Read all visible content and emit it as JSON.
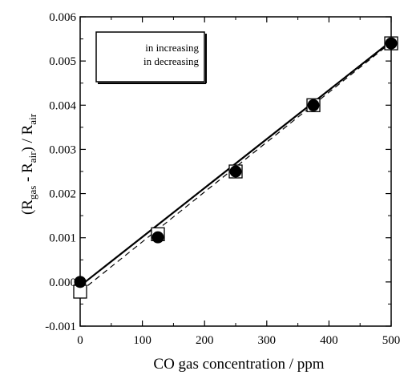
{
  "chart_data": {
    "type": "scatter",
    "xlabel": "CO gas concentration / ppm",
    "ylabel": {
      "open": "(R",
      "sub1": "gas",
      "mid": " - R",
      "sub2": "air",
      "close": ") / R",
      "sub3": "air"
    },
    "xlim": [
      0,
      500
    ],
    "ylim": [
      -0.001,
      0.006
    ],
    "x_ticks": [
      0,
      100,
      200,
      300,
      400,
      500
    ],
    "x_tick_labels": [
      "0",
      "100",
      "200",
      "300",
      "400",
      "500"
    ],
    "y_ticks": [
      -0.001,
      0,
      0.001,
      0.002,
      0.003,
      0.004,
      0.005,
      0.006
    ],
    "y_tick_labels": [
      "-0.001",
      "0.000",
      "0.001",
      "0.002",
      "0.003",
      "0.004",
      "0.005",
      "0.006"
    ],
    "grid": false,
    "legend_position": "top-left",
    "series": [
      {
        "name": "in increasing",
        "marker": "filled-circle",
        "line": "solid",
        "color": "#000000",
        "x": [
          0,
          125,
          250,
          375,
          500
        ],
        "y": [
          0.0,
          0.00101,
          0.0025,
          0.004,
          0.0054
        ],
        "fit": [
          [
            0,
            -9e-05
          ],
          [
            500,
            0.00545
          ]
        ]
      },
      {
        "name": "in decreasing",
        "marker": "open-square",
        "line": "dashed",
        "color": "#000000",
        "x": [
          0,
          125,
          250,
          375,
          500
        ],
        "y": [
          -0.00022,
          0.00108,
          0.0025,
          0.004,
          0.0054
        ],
        "fit": [
          [
            0,
            -0.00022
          ],
          [
            500,
            0.00542
          ]
        ]
      }
    ]
  }
}
